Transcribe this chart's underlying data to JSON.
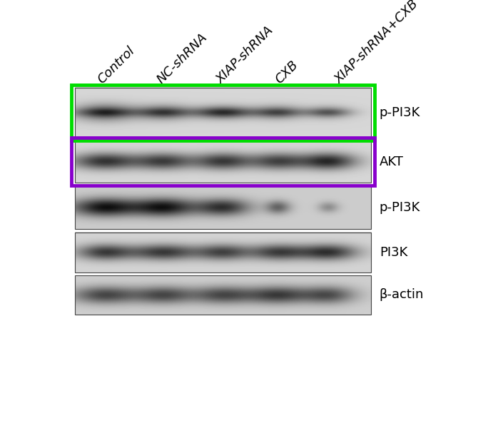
{
  "fig_width": 7.05,
  "fig_height": 6.0,
  "dpi": 100,
  "bg_color": "#ffffff",
  "column_labels": [
    "Control",
    "NC-shRNA",
    "XIAP-shRNA",
    "CXB",
    "XIAP-shRNA+CXB"
  ],
  "row_labels": [
    "p-PI3K",
    "AKT",
    "p-PI3K",
    "PI3K",
    "β-actin"
  ],
  "green_color": "#00dd00",
  "purple_color": "#8800cc",
  "font_size_labels": 13,
  "font_size_row_labels": 13
}
